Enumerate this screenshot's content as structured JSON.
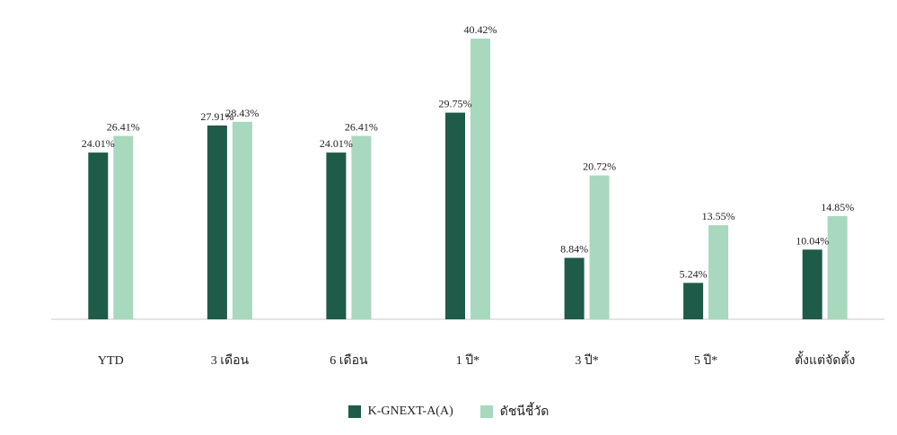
{
  "chart_data": {
    "type": "bar",
    "categories": [
      "YTD",
      "3 เดือน",
      "6 เดือน",
      "1 ปี*",
      "3 ปี*",
      "5 ปี*",
      "ตั้งแต่จัดตั้ง"
    ],
    "series": [
      {
        "name": "K-GNEXT-A(A)",
        "color": "#1e5b48",
        "values": [
          24.01,
          27.91,
          24.01,
          29.75,
          8.84,
          5.24,
          10.04
        ],
        "labels": [
          "24.01%",
          "27.91%",
          "24.01%",
          "29.75%",
          "8.84%",
          "5.24%",
          "10.04%"
        ]
      },
      {
        "name": "ดัชนีชี้วัด",
        "color": "#a8d8bd",
        "values": [
          26.41,
          28.43,
          26.41,
          40.42,
          20.72,
          13.55,
          14.85
        ],
        "labels": [
          "26.41%",
          "28.43%",
          "26.41%",
          "40.42%",
          "20.72%",
          "13.55%",
          "14.85%"
        ]
      }
    ],
    "ylim": [
      0,
      40.42
    ],
    "grid": false,
    "legend_position": "bottom"
  }
}
